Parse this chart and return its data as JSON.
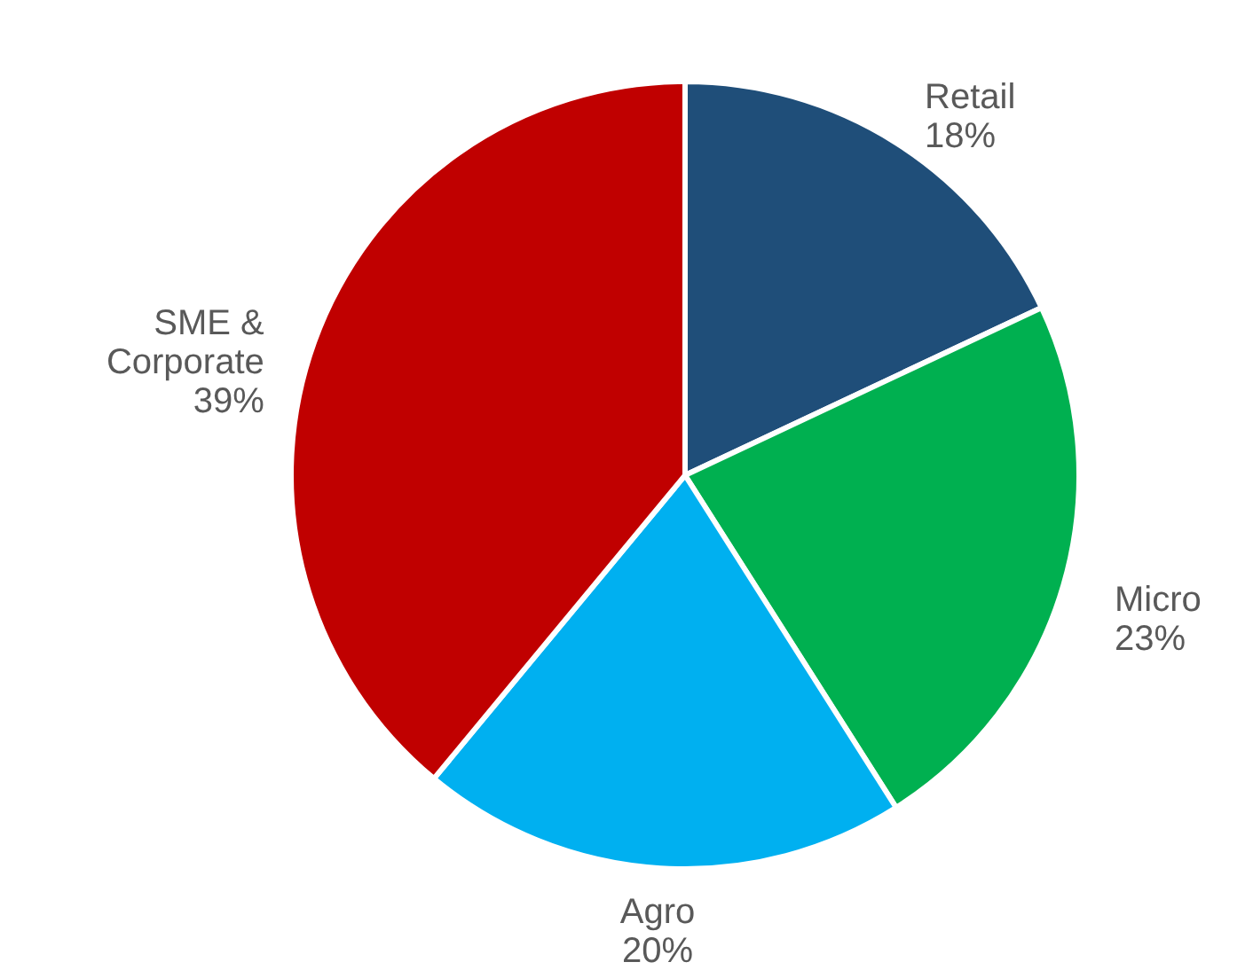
{
  "chart_data": {
    "type": "pie",
    "categories": [
      "Retail",
      "Micro",
      "Agro",
      "SME & Corporate"
    ],
    "values": [
      18,
      23,
      20,
      39
    ],
    "colors": [
      "#1f4e79",
      "#00b050",
      "#00b0f0",
      "#c00000"
    ],
    "value_labels": [
      "18%",
      "23%",
      "20%",
      "39%"
    ]
  }
}
